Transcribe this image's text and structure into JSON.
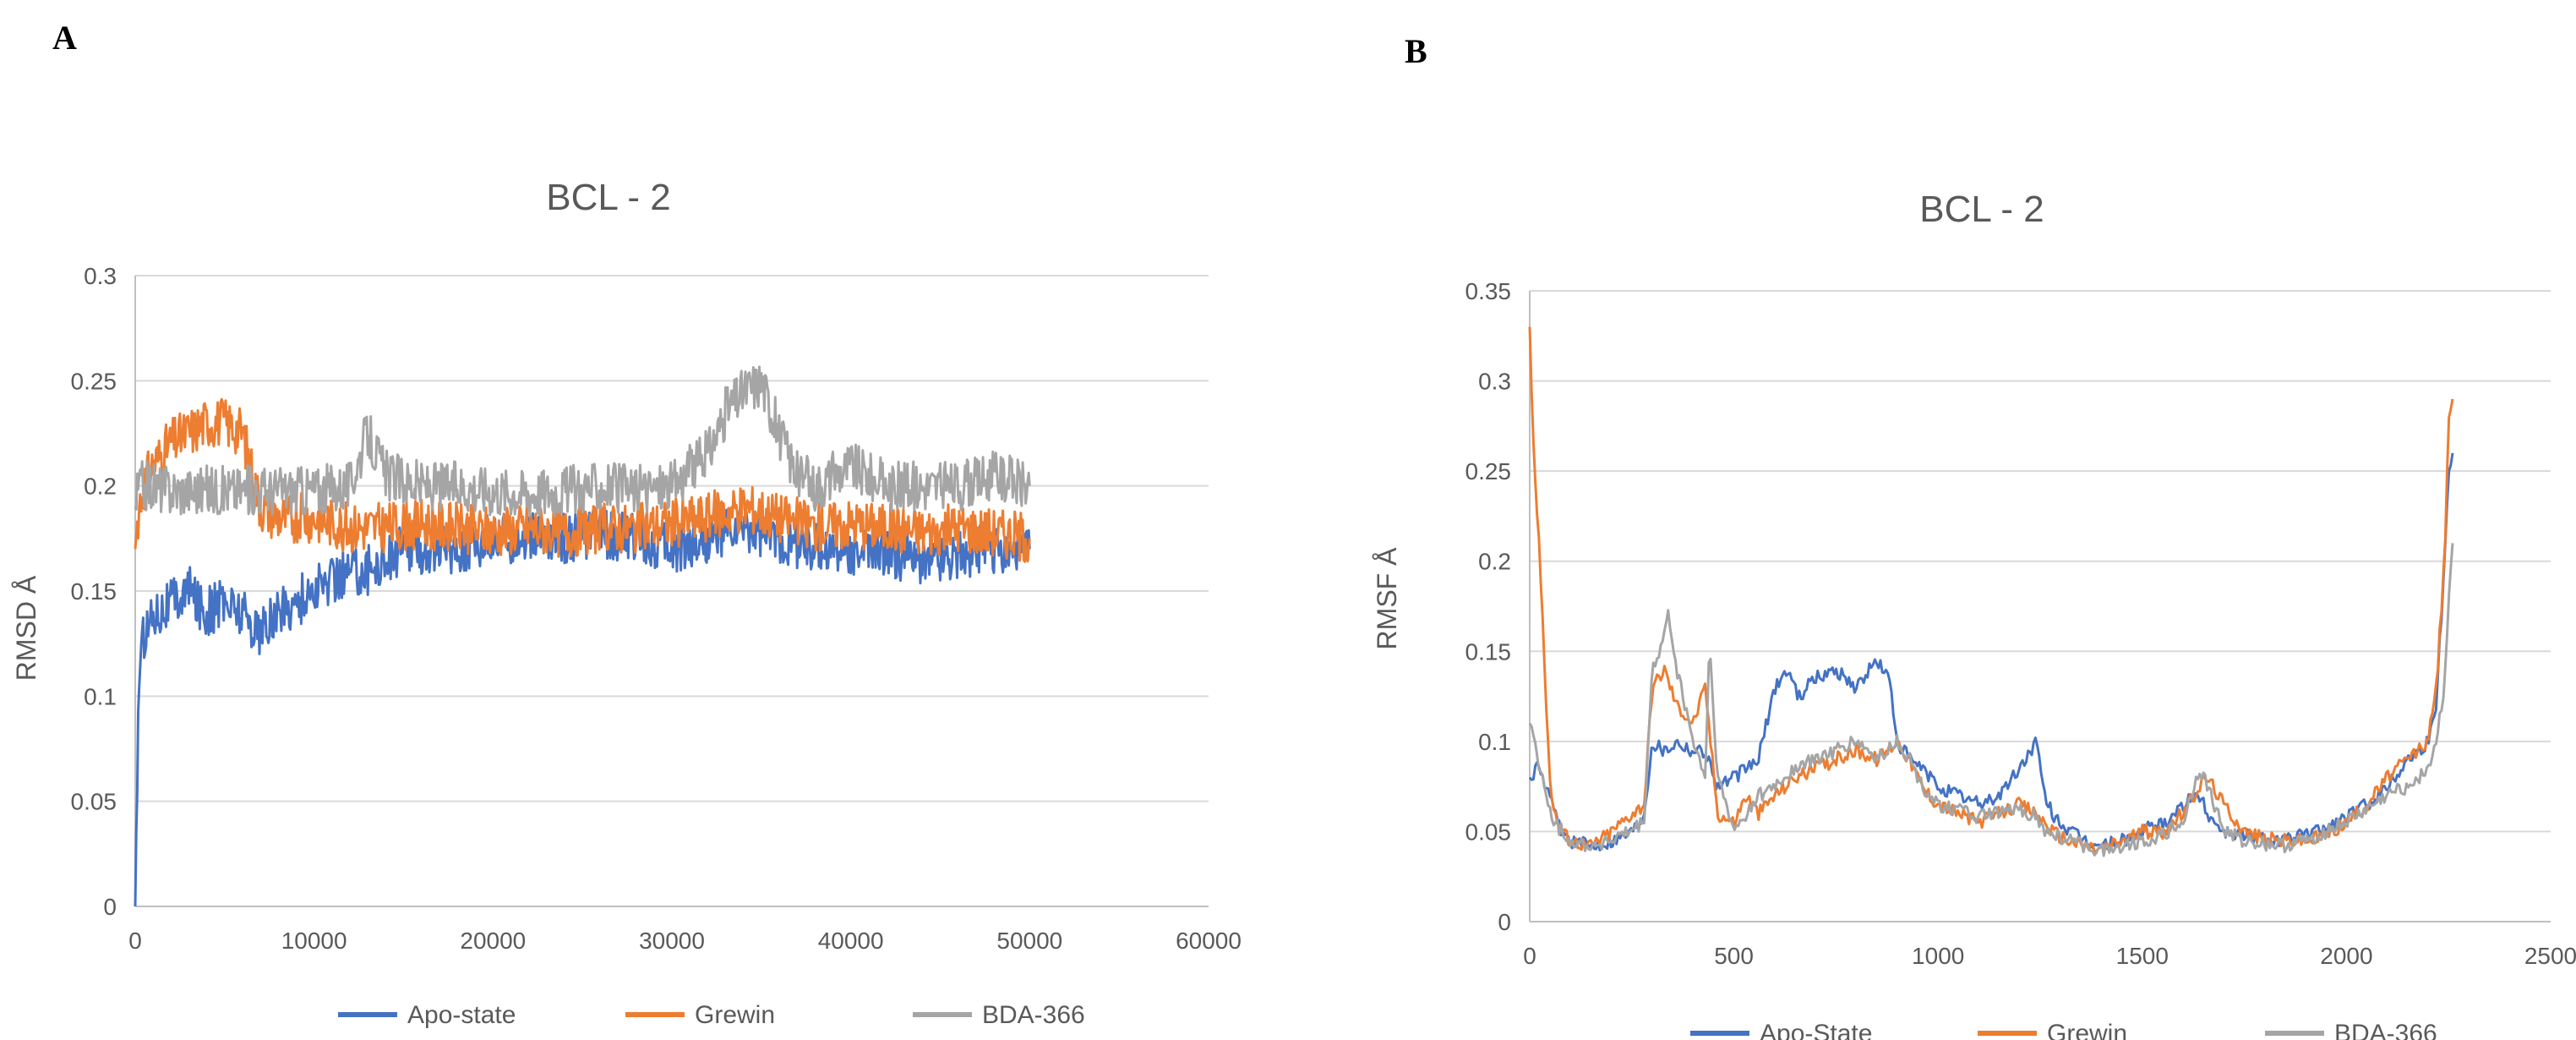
{
  "panels": [
    {
      "label": "A",
      "chart_data": {
        "type": "line",
        "title": "BCL - 2",
        "xlabel": "",
        "ylabel": "RMSD Å",
        "xlim": [
          0,
          60000
        ],
        "ylim": [
          0,
          0.3
        ],
        "x_ticks": [
          "0",
          "10000",
          "20000",
          "30000",
          "40000",
          "50000",
          "60000"
        ],
        "y_ticks": [
          "0",
          "0.05",
          "0.1",
          "0.15",
          "0.2",
          "0.25",
          "0.3"
        ],
        "grid": true,
        "legend_position": "bottom",
        "series": [
          {
            "name": "Apo-state",
            "color": "#4472C4",
            "x": [
              0,
              200,
              500,
              1000,
              2000,
              3000,
              4000,
              5000,
              6000,
              7000,
              8000,
              9000,
              10000,
              11000,
              12000,
              13000,
              14000,
              15000,
              16000,
              18000,
              20000,
              22000,
              24000,
              26000,
              28000,
              30000,
              32000,
              34000,
              36000,
              38000,
              40000,
              42000,
              44000,
              46000,
              48000,
              50000
            ],
            "y": [
              0.0,
              0.11,
              0.13,
              0.14,
              0.145,
              0.15,
              0.14,
              0.145,
              0.14,
              0.13,
              0.14,
              0.145,
              0.15,
              0.155,
              0.16,
              0.16,
              0.165,
              0.17,
              0.17,
              0.17,
              0.175,
              0.175,
              0.175,
              0.178,
              0.175,
              0.17,
              0.175,
              0.18,
              0.175,
              0.17,
              0.17,
              0.168,
              0.165,
              0.168,
              0.17,
              0.17
            ]
          },
          {
            "name": "Grewin",
            "color": "#ED7D31",
            "x": [
              0,
              200,
              500,
              1000,
              2000,
              3000,
              4000,
              5000,
              6000,
              7000,
              8000,
              10000,
              12000,
              14000,
              16000,
              18000,
              20000,
              22000,
              24000,
              26000,
              28000,
              30000,
              32000,
              34000,
              36000,
              38000,
              40000,
              42000,
              44000,
              46000,
              48000,
              50000
            ],
            "y": [
              0.17,
              0.19,
              0.2,
              0.21,
              0.22,
              0.225,
              0.23,
              0.23,
              0.225,
              0.19,
              0.185,
              0.185,
              0.18,
              0.18,
              0.182,
              0.18,
              0.178,
              0.18,
              0.178,
              0.18,
              0.18,
              0.182,
              0.185,
              0.19,
              0.185,
              0.18,
              0.182,
              0.18,
              0.178,
              0.18,
              0.178,
              0.175
            ]
          },
          {
            "name": "BDA-366",
            "color": "#A5A5A5",
            "x": [
              0,
              200,
              500,
              1000,
              2000,
              4000,
              6000,
              8000,
              10000,
              12000,
              13000,
              14000,
              16000,
              18000,
              20000,
              22000,
              24000,
              26000,
              28000,
              30000,
              32000,
              33000,
              34000,
              35000,
              36000,
              37000,
              38000,
              40000,
              42000,
              44000,
              46000,
              48000,
              50000
            ],
            "y": [
              0.19,
              0.2,
              0.2,
              0.2,
              0.198,
              0.198,
              0.198,
              0.198,
              0.198,
              0.2,
              0.225,
              0.205,
              0.2,
              0.2,
              0.198,
              0.197,
              0.198,
              0.2,
              0.198,
              0.2,
              0.215,
              0.235,
              0.245,
              0.25,
              0.225,
              0.205,
              0.2,
              0.21,
              0.2,
              0.2,
              0.2,
              0.205,
              0.2
            ]
          }
        ]
      }
    },
    {
      "label": "B",
      "chart_data": {
        "type": "line",
        "title": "BCL - 2",
        "xlabel": "",
        "ylabel": "RMSF Å",
        "xlim": [
          0,
          2500
        ],
        "ylim": [
          0,
          0.35
        ],
        "x_ticks": [
          "0",
          "500",
          "1000",
          "1500",
          "2000",
          "2500"
        ],
        "y_ticks": [
          "0",
          "0.05",
          "0.1",
          "0.15",
          "0.2",
          "0.25",
          "0.3",
          "0.35"
        ],
        "grid": true,
        "legend_position": "bottom",
        "series": [
          {
            "name": "Apo-State",
            "color": "#4472C4",
            "x": [
              0,
              20,
              40,
              60,
              80,
              100,
              150,
              200,
              250,
              280,
              300,
              330,
              360,
              400,
              430,
              460,
              500,
              530,
              560,
              600,
              630,
              660,
              700,
              750,
              800,
              850,
              880,
              900,
              930,
              960,
              1000,
              1050,
              1100,
              1150,
              1200,
              1240,
              1260,
              1280,
              1320,
              1360,
              1400,
              1450,
              1500,
              1550,
              1600,
              1640,
              1660,
              1700,
              1750,
              1800,
              1850,
              1900,
              1950,
              2000,
              2050,
              2100,
              2150,
              2200,
              2220,
              2240,
              2250,
              2260
            ],
            "y": [
              0.08,
              0.085,
              0.075,
              0.06,
              0.05,
              0.045,
              0.042,
              0.045,
              0.05,
              0.06,
              0.1,
              0.095,
              0.1,
              0.095,
              0.095,
              0.075,
              0.08,
              0.085,
              0.09,
              0.13,
              0.14,
              0.125,
              0.135,
              0.14,
              0.13,
              0.145,
              0.135,
              0.1,
              0.09,
              0.085,
              0.075,
              0.07,
              0.065,
              0.07,
              0.085,
              0.1,
              0.07,
              0.06,
              0.05,
              0.045,
              0.042,
              0.045,
              0.05,
              0.055,
              0.065,
              0.07,
              0.06,
              0.05,
              0.048,
              0.046,
              0.045,
              0.048,
              0.052,
              0.058,
              0.065,
              0.075,
              0.09,
              0.1,
              0.12,
              0.2,
              0.25,
              0.26
            ]
          },
          {
            "name": "Grewin",
            "color": "#ED7D31",
            "x": [
              0,
              10,
              20,
              30,
              40,
              50,
              60,
              80,
              100,
              150,
              200,
              250,
              280,
              300,
              330,
              360,
              400,
              430,
              460,
              500,
              530,
              560,
              600,
              650,
              700,
              750,
              800,
              850,
              900,
              930,
              960,
              1000,
              1050,
              1100,
              1150,
              1200,
              1240,
              1260,
              1280,
              1320,
              1360,
              1400,
              1450,
              1500,
              1550,
              1600,
              1640,
              1660,
              1700,
              1750,
              1800,
              1850,
              1900,
              1950,
              2000,
              2050,
              2100,
              2150,
              2200,
              2220,
              2240,
              2250,
              2260
            ],
            "y": [
              0.33,
              0.26,
              0.22,
              0.18,
              0.12,
              0.08,
              0.06,
              0.05,
              0.045,
              0.042,
              0.05,
              0.06,
              0.065,
              0.13,
              0.14,
              0.12,
              0.11,
              0.13,
              0.06,
              0.055,
              0.07,
              0.06,
              0.07,
              0.08,
              0.085,
              0.09,
              0.095,
              0.09,
              0.1,
              0.09,
              0.075,
              0.065,
              0.06,
              0.055,
              0.06,
              0.065,
              0.06,
              0.055,
              0.05,
              0.045,
              0.042,
              0.04,
              0.045,
              0.05,
              0.05,
              0.06,
              0.075,
              0.08,
              0.065,
              0.05,
              0.046,
              0.045,
              0.045,
              0.048,
              0.055,
              0.065,
              0.08,
              0.09,
              0.1,
              0.13,
              0.2,
              0.28,
              0.29
            ]
          },
          {
            "name": "BDA-366",
            "color": "#A5A5A5",
            "x": [
              0,
              20,
              40,
              60,
              80,
              100,
              150,
              200,
              250,
              280,
              300,
              320,
              340,
              360,
              400,
              430,
              440,
              460,
              500,
              530,
              560,
              600,
              650,
              700,
              750,
              800,
              850,
              900,
              930,
              960,
              1000,
              1050,
              1100,
              1150,
              1200,
              1240,
              1260,
              1280,
              1320,
              1360,
              1400,
              1450,
              1500,
              1550,
              1600,
              1640,
              1660,
              1700,
              1750,
              1800,
              1850,
              1900,
              1950,
              2000,
              2050,
              2100,
              2150,
              2200,
              2220,
              2240,
              2250,
              2260
            ],
            "y": [
              0.11,
              0.09,
              0.07,
              0.055,
              0.05,
              0.045,
              0.042,
              0.045,
              0.05,
              0.055,
              0.14,
              0.15,
              0.17,
              0.14,
              0.1,
              0.08,
              0.155,
              0.08,
              0.05,
              0.06,
              0.07,
              0.075,
              0.085,
              0.09,
              0.095,
              0.1,
              0.09,
              0.1,
              0.09,
              0.075,
              0.065,
              0.062,
              0.058,
              0.06,
              0.062,
              0.058,
              0.05,
              0.048,
              0.045,
              0.042,
              0.04,
              0.042,
              0.045,
              0.048,
              0.055,
              0.085,
              0.075,
              0.05,
              0.045,
              0.043,
              0.042,
              0.045,
              0.05,
              0.055,
              0.062,
              0.07,
              0.075,
              0.085,
              0.1,
              0.13,
              0.18,
              0.21
            ]
          }
        ]
      }
    }
  ]
}
